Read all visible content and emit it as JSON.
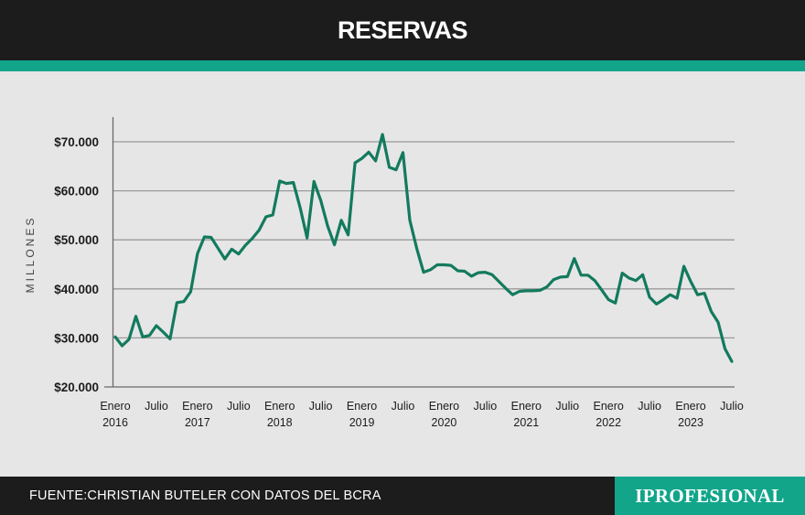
{
  "header": {
    "title": "RESERVAS"
  },
  "footer": {
    "source": "FUENTE:CHRISTIAN BUTELER CON DATOS DEL BCRA",
    "brand": "IPROFESIONAL"
  },
  "colors": {
    "line": "#137a5d",
    "accent": "#12a58a",
    "header_bg": "#1c1c1c",
    "plot_bg": "#e6e6e7",
    "grid": "#9a9a9a"
  },
  "chart_data": {
    "type": "line",
    "title": "RESERVAS",
    "ylabel": "MILLONES",
    "xlabel": "",
    "ylim": [
      20000,
      73000
    ],
    "xlim": [
      0,
      91
    ],
    "grid": true,
    "y_ticks": [
      {
        "value": 20000,
        "label": "$20.000"
      },
      {
        "value": 30000,
        "label": "$30.000"
      },
      {
        "value": 40000,
        "label": "$40.000"
      },
      {
        "value": 50000,
        "label": "$50.000"
      },
      {
        "value": 60000,
        "label": "$60.000"
      },
      {
        "value": 70000,
        "label": "$70.000"
      }
    ],
    "x_ticks": [
      {
        "index": 0,
        "label": "Enero",
        "year": "2016"
      },
      {
        "index": 6,
        "label": "Julio",
        "year": ""
      },
      {
        "index": 12,
        "label": "Enero",
        "year": "2017"
      },
      {
        "index": 18,
        "label": "Julio",
        "year": ""
      },
      {
        "index": 24,
        "label": "Enero",
        "year": "2018"
      },
      {
        "index": 30,
        "label": "Julio",
        "year": ""
      },
      {
        "index": 36,
        "label": "Enero",
        "year": "2019"
      },
      {
        "index": 42,
        "label": "Julio",
        "year": ""
      },
      {
        "index": 48,
        "label": "Enero",
        "year": "2020"
      },
      {
        "index": 54,
        "label": "Julio",
        "year": ""
      },
      {
        "index": 60,
        "label": "Enero",
        "year": "2021"
      },
      {
        "index": 66,
        "label": "Julio",
        "year": ""
      },
      {
        "index": 72,
        "label": "Enero",
        "year": "2022"
      },
      {
        "index": 78,
        "label": "Julio",
        "year": ""
      },
      {
        "index": 84,
        "label": "Enero",
        "year": "2023"
      },
      {
        "index": 90,
        "label": "Julio",
        "year": ""
      }
    ],
    "series": [
      {
        "name": "Reservas",
        "points": [
          [
            0,
            30200
          ],
          [
            1,
            28400
          ],
          [
            2,
            29700
          ],
          [
            3,
            34400
          ],
          [
            4,
            30200
          ],
          [
            5,
            30500
          ],
          [
            6,
            32500
          ],
          [
            7,
            31200
          ],
          [
            8,
            29800
          ],
          [
            9,
            37200
          ],
          [
            10,
            37400
          ],
          [
            11,
            39400
          ],
          [
            12,
            47200
          ],
          [
            13,
            50600
          ],
          [
            14,
            50500
          ],
          [
            15,
            48300
          ],
          [
            16,
            46100
          ],
          [
            17,
            48100
          ],
          [
            18,
            47100
          ],
          [
            19,
            48900
          ],
          [
            20,
            50300
          ],
          [
            21,
            52000
          ],
          [
            22,
            54700
          ],
          [
            23,
            55100
          ],
          [
            24,
            62000
          ],
          [
            25,
            61500
          ],
          [
            26,
            61700
          ],
          [
            27,
            56500
          ],
          [
            28,
            50400
          ],
          [
            29,
            61900
          ],
          [
            30,
            58000
          ],
          [
            31,
            52800
          ],
          [
            32,
            49000
          ],
          [
            33,
            54000
          ],
          [
            34,
            51000
          ],
          [
            35,
            65700
          ],
          [
            36,
            66600
          ],
          [
            37,
            67900
          ],
          [
            38,
            66100
          ],
          [
            39,
            71500
          ],
          [
            40,
            64800
          ],
          [
            41,
            64300
          ],
          [
            42,
            67800
          ],
          [
            43,
            54000
          ],
          [
            44,
            48300
          ],
          [
            45,
            43400
          ],
          [
            46,
            43900
          ],
          [
            47,
            44900
          ],
          [
            48,
            44900
          ],
          [
            49,
            44800
          ],
          [
            50,
            43700
          ],
          [
            51,
            43600
          ],
          [
            52,
            42600
          ],
          [
            53,
            43300
          ],
          [
            54,
            43400
          ],
          [
            55,
            42900
          ],
          [
            56,
            41500
          ],
          [
            57,
            40100
          ],
          [
            58,
            38800
          ],
          [
            59,
            39500
          ],
          [
            60,
            39600
          ],
          [
            61,
            39600
          ],
          [
            62,
            39700
          ],
          [
            63,
            40400
          ],
          [
            64,
            41900
          ],
          [
            65,
            42400
          ],
          [
            66,
            42500
          ],
          [
            67,
            46200
          ],
          [
            68,
            42800
          ],
          [
            69,
            42800
          ],
          [
            70,
            41700
          ],
          [
            71,
            39800
          ],
          [
            72,
            37800
          ],
          [
            73,
            37100
          ],
          [
            74,
            43200
          ],
          [
            75,
            42200
          ],
          [
            76,
            41700
          ],
          [
            77,
            42900
          ],
          [
            78,
            38300
          ],
          [
            79,
            36900
          ],
          [
            80,
            37800
          ],
          [
            81,
            38800
          ],
          [
            82,
            38100
          ],
          [
            83,
            44600
          ],
          [
            84,
            41500
          ],
          [
            85,
            38800
          ],
          [
            86,
            39100
          ],
          [
            87,
            35400
          ],
          [
            88,
            33200
          ],
          [
            89,
            27800
          ],
          [
            90,
            25200
          ]
        ]
      }
    ]
  }
}
